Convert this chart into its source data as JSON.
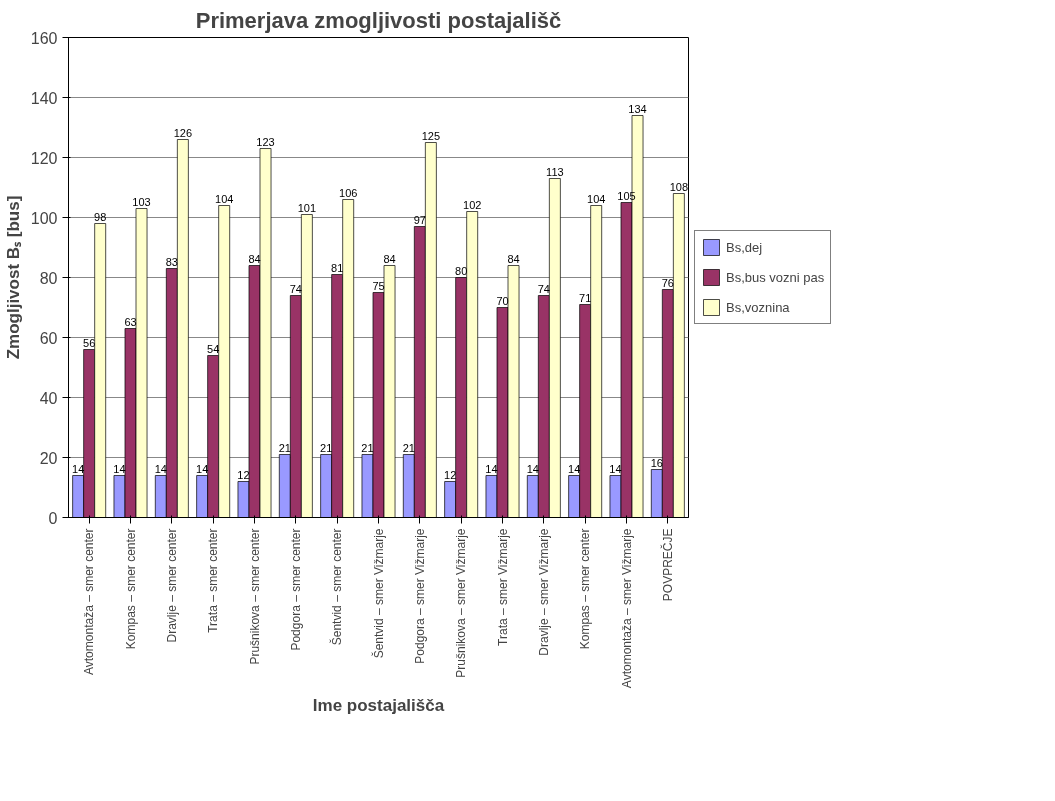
{
  "chart_data": {
    "type": "bar",
    "title": "Primerjava zmogljivosti postajališč",
    "xlabel": "Ime postajališča",
    "ylabel": "Zmogljivost Bₛ [bus]",
    "categories": [
      "Avtomontaža – smer center",
      "Kompas – smer center",
      "Dravlje – smer center",
      "Trata – smer center",
      "Prušnikova – smer center",
      "Podgora – smer center",
      "Šentvid – smer center",
      "Šentvid – smer Vižmarje",
      "Podgora – smer Vižmarje",
      "Prušnikova – smer Vižmarje",
      "Trata – smer Vižmarje",
      "Dravlje – smer Vižmarje",
      "Kompas – smer center",
      "Avtomontaža – smer Vižmarje",
      "POVPREČJE"
    ],
    "series": [
      {
        "name": "Bs,dej",
        "color": "#9999ff",
        "values": [
          14,
          14,
          14,
          14,
          12,
          21,
          21,
          21,
          21,
          12,
          14,
          14,
          14,
          14,
          16
        ]
      },
      {
        "name": "Bs,bus vozni pas",
        "color": "#993366",
        "values": [
          56,
          63,
          83,
          54,
          84,
          74,
          81,
          75,
          97,
          80,
          70,
          74,
          71,
          105,
          76
        ]
      },
      {
        "name": "Bs,voznina",
        "color": "#ffffcc",
        "values": [
          98,
          103,
          126,
          104,
          123,
          101,
          106,
          84,
          125,
          102,
          84,
          113,
          104,
          134,
          108
        ]
      }
    ],
    "ylim": [
      0,
      160
    ],
    "yticks": [
      0,
      20,
      40,
      60,
      80,
      100,
      120,
      140,
      160
    ],
    "grid": "y",
    "legend": "right",
    "data_labels": true
  }
}
